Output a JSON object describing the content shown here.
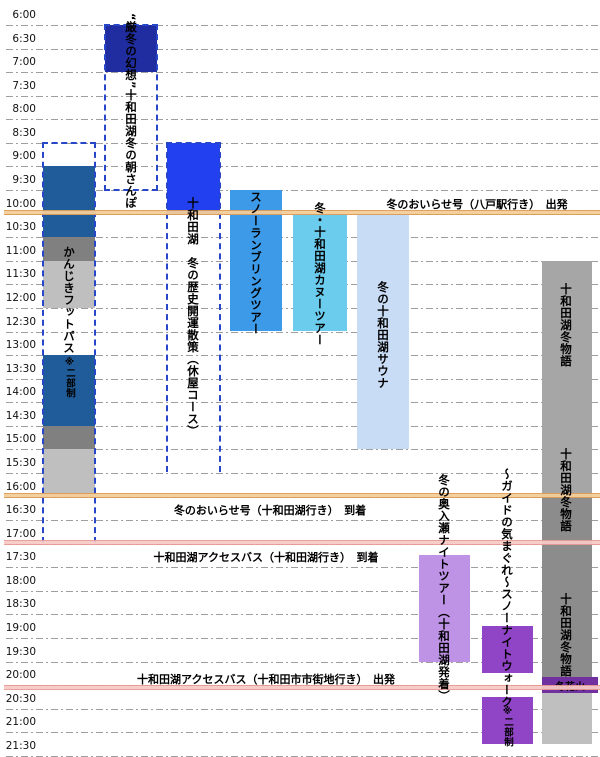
{
  "chart_data": {
    "type": "bar",
    "subtype": "vertical-gantt-time-schedule",
    "title": "",
    "time_axis": {
      "start": "6:00",
      "end": "21:30",
      "interval_minutes": 30,
      "ticks": [
        "6:00",
        "6:30",
        "7:00",
        "7:30",
        "8:00",
        "8:30",
        "9:00",
        "9:30",
        "10:00",
        "10:30",
        "11:00",
        "11:30",
        "12:00",
        "12:30",
        "13:00",
        "13:30",
        "14:00",
        "14:30",
        "15:00",
        "15:30",
        "16:00",
        "16:30",
        "17:00",
        "17:30",
        "18:00",
        "18:30",
        "19:00",
        "19:30",
        "20:00",
        "20:30",
        "21:00",
        "21:30"
      ]
    },
    "grid": true,
    "activities": [
      {
        "id": "kanjiki-footpath",
        "label": "かんじきフットパス",
        "sub_label": "※二部制",
        "outline": {
          "start": "8:30",
          "end": "17:00",
          "style": "dashed"
        },
        "segments": [
          {
            "start": "9:00",
            "end": "10:30",
            "color": "#1F5C99"
          },
          {
            "start": "10:30",
            "end": "11:00",
            "color": "#808080"
          },
          {
            "start": "11:00",
            "end": "12:00",
            "color": "#BFBFBF"
          },
          {
            "start": "13:00",
            "end": "14:30",
            "color": "#1F5C99"
          },
          {
            "start": "14:30",
            "end": "15:00",
            "color": "#808080"
          },
          {
            "start": "15:00",
            "end": "16:00",
            "color": "#BFBFBF"
          }
        ]
      },
      {
        "id": "morning-walk",
        "label": "“厳冬の幻想”十和田湖冬の朝さんぽ",
        "outline": {
          "start": "6:00",
          "end": "9:30",
          "style": "dashed"
        },
        "segments": [
          {
            "start": "6:00",
            "end": "7:00",
            "color": "#1F2DA0"
          }
        ]
      },
      {
        "id": "history-walk",
        "label": "十和田湖　冬の歴史開運散策（休屋コース）",
        "outline": {
          "start": "8:30",
          "end": "15:30",
          "style": "dashed"
        },
        "segments": [
          {
            "start": "8:30",
            "end": "10:00",
            "color": "#2240F0"
          }
        ]
      },
      {
        "id": "snow-rambling",
        "label": "スノーランブリングツアー",
        "segments": [
          {
            "start": "9:30",
            "end": "12:30",
            "color": "#3D9AE8"
          }
        ]
      },
      {
        "id": "canoe-tour",
        "label": "冬・十和田湖カヌーツアー",
        "segments": [
          {
            "start": "10:00",
            "end": "12:30",
            "color": "#6BCCEE"
          }
        ]
      },
      {
        "id": "sauna",
        "label": "冬の十和田湖サウナ",
        "segments": [
          {
            "start": "10:00",
            "end": "15:00",
            "color": "#C9DCF5"
          }
        ]
      },
      {
        "id": "oirase-night-tour",
        "label": "冬の奥入瀬ナイトツアー（十和田湖発着）",
        "segments": [
          {
            "start": "17:15",
            "end": "19:30",
            "color": "#BE93E6"
          }
        ]
      },
      {
        "id": "snow-night-walk",
        "label": "～ガイドの気まぐれ～スノーナイトウォーク",
        "sub_label": "※二部制",
        "segments": [
          {
            "start": "18:45",
            "end": "19:45",
            "color": "#9044C6"
          },
          {
            "start": "20:15",
            "end": "21:15",
            "color": "#9044C6"
          }
        ]
      },
      {
        "id": "winter-story",
        "label": "十和田湖冬物語",
        "label_repeat": 3,
        "segments": [
          {
            "start": "11:00",
            "end": "16:00",
            "color": "#A6A6A6"
          },
          {
            "start": "16:00",
            "end": "19:50",
            "color": "#8C8C8C"
          },
          {
            "start": "19:50",
            "end": "20:10",
            "color": "#7030A0",
            "band_label": "冬花火"
          },
          {
            "start": "20:10",
            "end": "21:15",
            "color": "#BFBFBF"
          }
        ]
      }
    ],
    "reference_lines": [
      {
        "time": "10:00",
        "label": "冬のおいらせ号（八戸駅行き）　出発",
        "fill": "#F5CE9A",
        "edge": "#DD9D58",
        "label_side": "above"
      },
      {
        "time": "16:00",
        "label": "冬のおいらせ号（十和田湖行き）　到着",
        "fill": "#F5CE9A",
        "edge": "#DD9D58",
        "label_side": "below"
      },
      {
        "time": "17:00",
        "label": "十和田湖アクセスバス（十和田湖行き）　到着",
        "fill": "#F6CBC7",
        "edge": "#E89B95",
        "label_side": "below"
      },
      {
        "time": "20:05",
        "label": "十和田湖アクセスバス（十和田市市街地行き）　出発",
        "fill": "#F6CBC7",
        "edge": "#E89B95",
        "label_side": "above"
      }
    ]
  }
}
